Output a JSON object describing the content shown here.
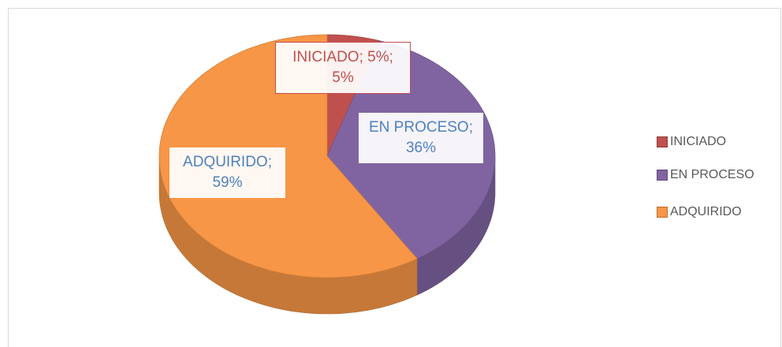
{
  "chart_data": {
    "type": "pie3d",
    "categories": [
      "INICIADO",
      "EN PROCESO",
      "ADQUIRIDO"
    ],
    "values": [
      5,
      36,
      59
    ],
    "value_labels": [
      "INICIADO; 5%; 5%",
      "EN PROCESO; 36%",
      "ADQUIRIDO; 59%"
    ],
    "colors": [
      "#c0504d",
      "#8064a2",
      "#f79646"
    ],
    "legend": "right"
  }
}
